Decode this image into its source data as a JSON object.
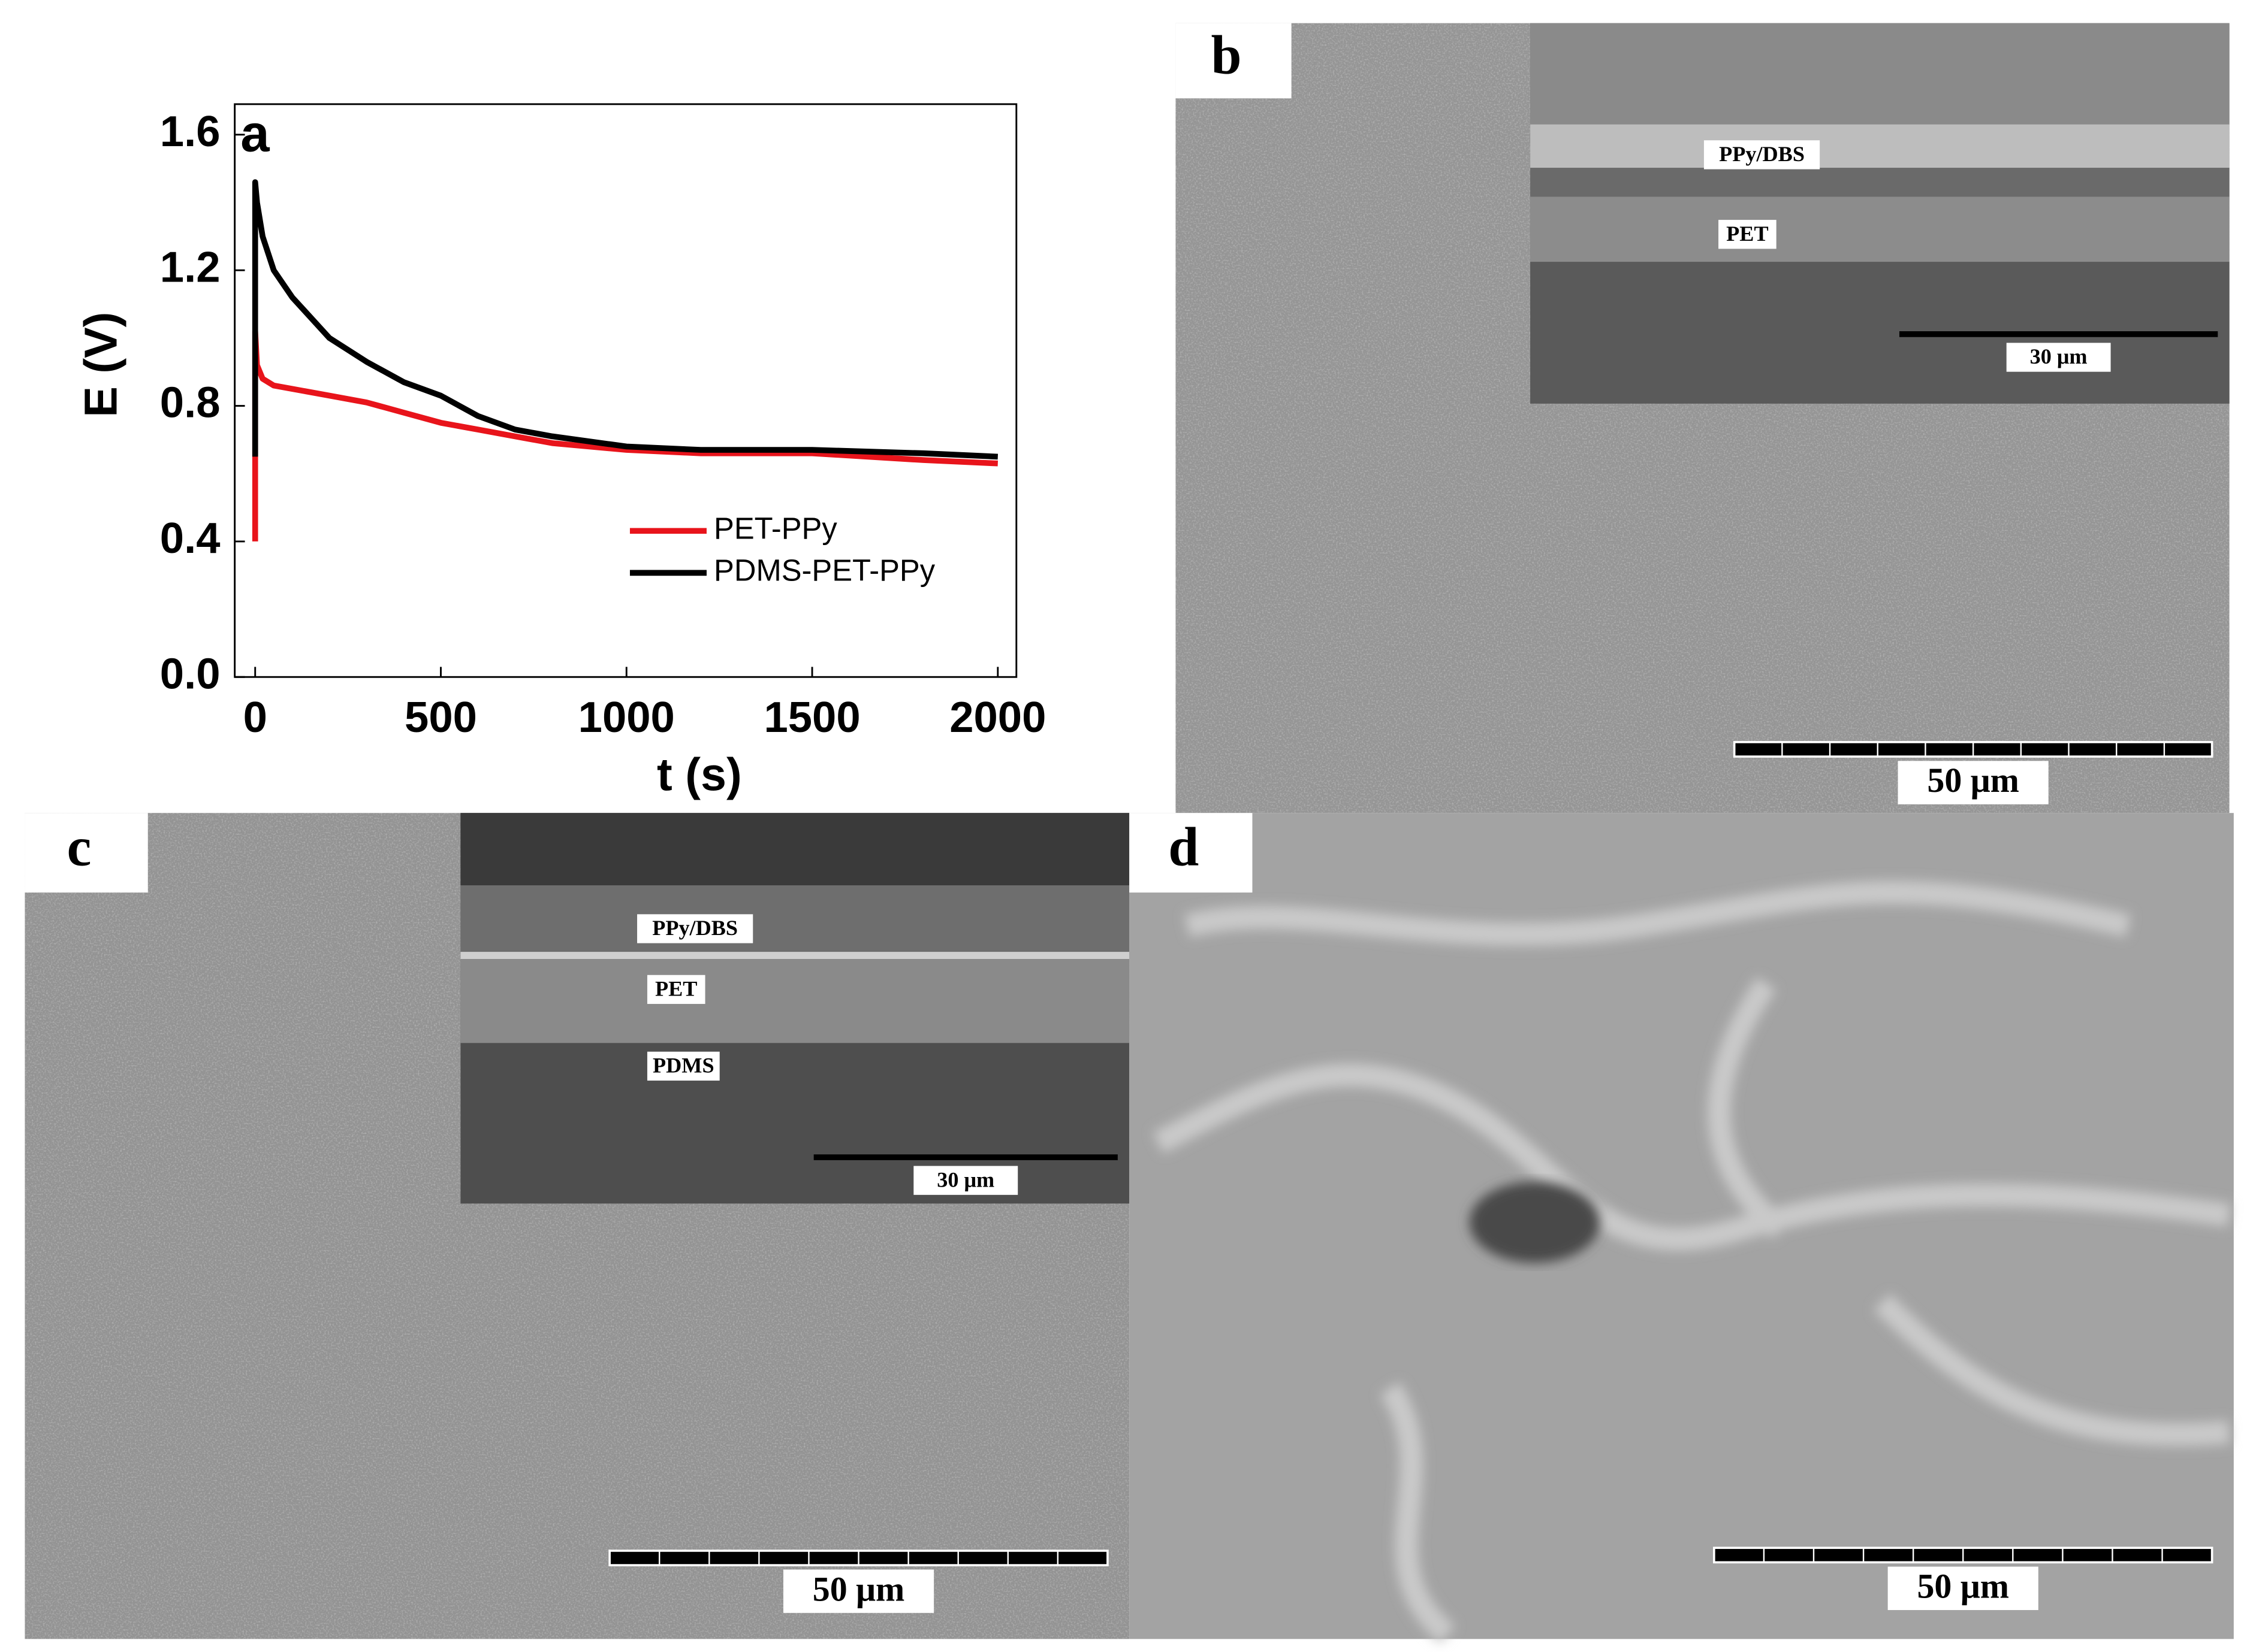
{
  "chart_data": {
    "type": "line",
    "panel_label": "a",
    "x_label": "t (s)",
    "y_label": "E (V)",
    "x": [
      0,
      0,
      5,
      20,
      50,
      100,
      200,
      300,
      400,
      500,
      600,
      700,
      800,
      1000,
      1200,
      1500,
      1800,
      2000
    ],
    "series": [
      {
        "name": "PET-PPy",
        "color": "#e8141b",
        "values": [
          0.4,
          1.02,
          0.92,
          0.88,
          0.86,
          0.85,
          0.83,
          0.81,
          0.78,
          0.75,
          0.73,
          0.71,
          0.69,
          0.67,
          0.66,
          0.66,
          0.64,
          0.63
        ]
      },
      {
        "name": "PDMS-PET-PPy",
        "color": "#000000",
        "values": [
          0.65,
          1.46,
          1.4,
          1.3,
          1.2,
          1.12,
          1.0,
          0.93,
          0.87,
          0.83,
          0.77,
          0.73,
          0.71,
          0.68,
          0.67,
          0.67,
          0.66,
          0.65
        ]
      }
    ],
    "xlim": [
      -55,
      2050
    ],
    "xticks": [
      0,
      500,
      1000,
      1500,
      2000
    ],
    "ylim": [
      0,
      1.69
    ],
    "yticks": [
      {
        "value": 0,
        "label": "0.0"
      },
      0.4,
      0.8,
      1.2,
      1.6
    ],
    "legend": "lower-right"
  },
  "panels": [
    {
      "label": "b",
      "scale_bar": "50 μm",
      "inset": {
        "layers": [
          "PPy/DBS",
          "PET"
        ],
        "scale_bar": "30 μm"
      }
    },
    {
      "label": "c",
      "scale_bar": "50 μm",
      "inset": {
        "layers": [
          "PPy/DBS",
          "PET",
          "PDMS"
        ],
        "scale_bar": "30 μm"
      }
    },
    {
      "label": "d",
      "scale_bar": "50 μm"
    }
  ]
}
